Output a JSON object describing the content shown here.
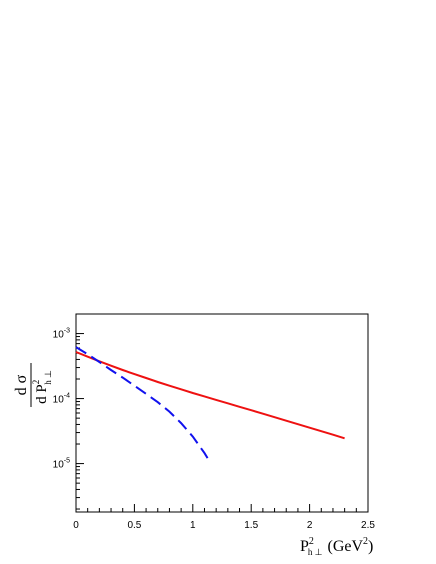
{
  "chart_data": {
    "type": "line",
    "title": "",
    "xlabel": "P²h⊥ (GeV²)",
    "xlabel_parts": {
      "base": "P",
      "sup": "2",
      "sub": "h ⊥",
      "unit_open": "(GeV",
      "unit_sup": "2",
      "unit_close": ")"
    },
    "ylabel": "dσ / dP²h⊥",
    "ylabel_parts": {
      "numerator": "d σ",
      "denominator_base": "d P",
      "denominator_sup": "2",
      "denominator_sub": "h ⊥"
    },
    "xlim": [
      0,
      2.5
    ],
    "ylim": [
      1.8e-06,
      0.002
    ],
    "yscale": "log",
    "grid": false,
    "x_ticks": [
      "0",
      "0.5",
      "1",
      "1.5",
      "2",
      "2.5"
    ],
    "y_ticks": [
      {
        "base": "10",
        "exp": "-3",
        "value": 0.001
      },
      {
        "base": "10",
        "exp": "-4",
        "value": 0.0001
      },
      {
        "base": "10",
        "exp": "-5",
        "value": 1e-05
      }
    ],
    "series": [
      {
        "color": "#ee1111",
        "style": "solid",
        "x": [
          0,
          0.1,
          0.2,
          0.3,
          0.4,
          0.5,
          0.6,
          0.7,
          0.8,
          0.9,
          1.0,
          1.1,
          1.2,
          1.3,
          1.4,
          1.5,
          1.6,
          1.7,
          1.8,
          1.9,
          2.0,
          2.1,
          2.2,
          2.3
        ],
        "y": [
          0.00052,
          0.00044,
          0.000375,
          0.00032,
          0.000275,
          0.000238,
          0.000207,
          0.00018,
          0.000158,
          0.000139,
          0.000122,
          0.000108,
          9.55e-05,
          8.45e-05,
          7.48e-05,
          6.62e-05,
          5.85e-05,
          5.17e-05,
          4.57e-05,
          4.04e-05,
          3.57e-05,
          3.15e-05,
          2.78e-05,
          2.45e-05
        ]
      },
      {
        "color": "#1111ee",
        "style": "dashed",
        "x": [
          0,
          0.1,
          0.2,
          0.3,
          0.4,
          0.5,
          0.6,
          0.7,
          0.8,
          0.9,
          1.0,
          1.1,
          1.13
        ],
        "y": [
          0.00062,
          0.00048,
          0.000365,
          0.000275,
          0.00021,
          0.000158,
          0.000118,
          8.8e-05,
          6.3e-05,
          4.2e-05,
          2.6e-05,
          1.45e-05,
          1.18e-05
        ]
      }
    ]
  },
  "colors": {
    "axis": "#000000",
    "background": "#ffffff"
  }
}
